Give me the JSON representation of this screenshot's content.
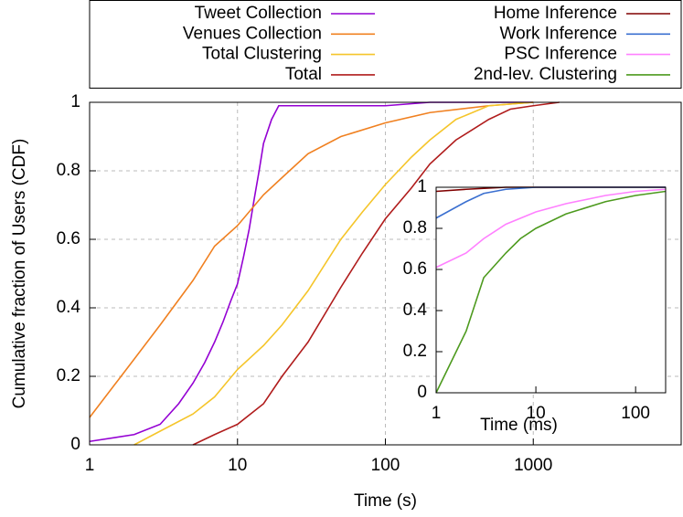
{
  "chart_data": [
    {
      "type": "line",
      "xlabel": "Time (s)",
      "ylabel": "Cumulative fraction of Users (CDF)",
      "xlog": true,
      "grid": true,
      "xlim": [
        1,
        10000
      ],
      "ylim": [
        0,
        1
      ],
      "xticks": [
        1,
        10,
        100,
        1000
      ],
      "yticks": [
        0,
        0.2,
        0.4,
        0.6,
        0.8,
        1
      ],
      "series": [
        {
          "name": "Tweet Collection",
          "color": "#9400d3",
          "x": [
            1,
            2,
            3,
            4,
            5,
            6,
            7,
            8,
            9,
            10,
            11,
            12,
            13,
            14,
            15,
            17,
            19,
            20,
            100,
            200,
            1000
          ],
          "values": [
            0.01,
            0.03,
            0.06,
            0.12,
            0.18,
            0.24,
            0.3,
            0.36,
            0.42,
            0.47,
            0.55,
            0.63,
            0.72,
            0.8,
            0.88,
            0.95,
            0.99,
            0.99,
            0.99,
            1,
            1
          ]
        },
        {
          "name": "Venues Collection",
          "color": "#f08020",
          "x": [
            1,
            2,
            3,
            5,
            7,
            10,
            15,
            20,
            30,
            50,
            100,
            200,
            500,
            1000
          ],
          "values": [
            0.08,
            0.25,
            0.35,
            0.48,
            0.58,
            0.64,
            0.73,
            0.78,
            0.85,
            0.9,
            0.94,
            0.97,
            0.99,
            1
          ]
        },
        {
          "name": "Total Clustering",
          "color": "#f5c52a",
          "x": [
            2,
            3,
            5,
            7,
            10,
            15,
            20,
            30,
            50,
            70,
            100,
            150,
            200,
            300,
            500,
            1000
          ],
          "values": [
            0,
            0.04,
            0.09,
            0.14,
            0.22,
            0.29,
            0.35,
            0.45,
            0.6,
            0.68,
            0.76,
            0.84,
            0.89,
            0.95,
            0.99,
            1
          ]
        },
        {
          "name": "Total",
          "color": "#b01c1c",
          "x": [
            5,
            7,
            10,
            15,
            20,
            30,
            50,
            70,
            100,
            150,
            200,
            300,
            500,
            700,
            1000,
            1500
          ],
          "values": [
            0,
            0.03,
            0.06,
            0.12,
            0.2,
            0.3,
            0.46,
            0.56,
            0.66,
            0.75,
            0.82,
            0.89,
            0.95,
            0.98,
            0.99,
            1
          ]
        }
      ]
    },
    {
      "type": "line",
      "xlabel": "Time (ms)",
      "xlog": true,
      "grid": false,
      "xlim": [
        1,
        200
      ],
      "ylim": [
        0,
        1
      ],
      "xticks": [
        1,
        10,
        100
      ],
      "yticks": [
        0,
        0.2,
        0.4,
        0.6,
        0.8,
        1
      ],
      "series": [
        {
          "name": "Home Inference",
          "color": "#800000",
          "x": [
            1,
            2,
            5,
            200
          ],
          "values": [
            0.98,
            0.99,
            1,
            1
          ]
        },
        {
          "name": "Work Inference",
          "color": "#3a6fd0",
          "x": [
            1,
            2,
            3,
            5,
            10,
            200
          ],
          "values": [
            0.85,
            0.93,
            0.97,
            0.99,
            1,
            1
          ]
        },
        {
          "name": "PSC Inference",
          "color": "#ff80ff",
          "x": [
            1,
            2,
            3,
            5,
            10,
            20,
            50,
            100,
            200
          ],
          "values": [
            0.61,
            0.68,
            0.75,
            0.82,
            0.88,
            0.92,
            0.96,
            0.98,
            0.99
          ]
        },
        {
          "name": "2nd-lev. Clustering",
          "color": "#4d9a1e",
          "x": [
            1,
            2,
            3,
            5,
            7,
            10,
            20,
            50,
            100,
            200
          ],
          "values": [
            0,
            0.3,
            0.56,
            0.68,
            0.75,
            0.8,
            0.87,
            0.93,
            0.96,
            0.98
          ]
        }
      ]
    }
  ]
}
